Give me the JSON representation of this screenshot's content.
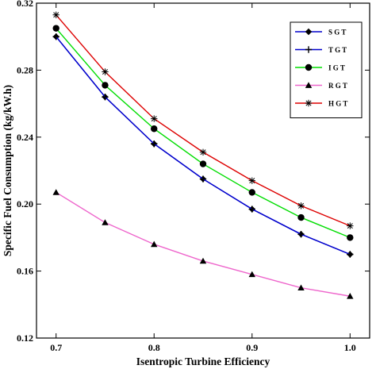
{
  "chart_data": {
    "type": "line",
    "xlabel": "Isentropic Turbine Efficiency",
    "ylabel": "Specific Fuel Consumption (kg/kW.h)",
    "x": [
      0.7,
      0.75,
      0.8,
      0.85,
      0.9,
      0.95,
      1.0
    ],
    "xlim": [
      0.68,
      1.02
    ],
    "ylim": [
      0.12,
      0.32
    ],
    "x_ticks": [
      "0.7",
      "0.8",
      "0.9",
      "1.0"
    ],
    "y_ticks": [
      "0.12",
      "0.16",
      "0.20",
      "0.24",
      "0.28",
      "0.32"
    ],
    "grid": false,
    "legend_position": "top-right",
    "series": [
      {
        "name": "SGT",
        "color": "#0000cc",
        "marker": "diamond",
        "values": [
          0.3,
          0.264,
          0.236,
          0.215,
          0.197,
          0.182,
          0.17
        ]
      },
      {
        "name": "TGT",
        "color": "#0000cc",
        "marker": "plus",
        "values": [
          0.3,
          0.264,
          0.236,
          0.215,
          0.197,
          0.182,
          0.17
        ]
      },
      {
        "name": "IGT",
        "color": "#00dd00",
        "marker": "circle",
        "values": [
          0.305,
          0.271,
          0.245,
          0.224,
          0.207,
          0.192,
          0.18
        ]
      },
      {
        "name": "RGT",
        "color": "#ee66cc",
        "marker": "triangle",
        "values": [
          0.207,
          0.189,
          0.176,
          0.166,
          0.158,
          0.15,
          0.145
        ]
      },
      {
        "name": "HGT",
        "color": "#dd0000",
        "marker": "star",
        "values": [
          0.313,
          0.279,
          0.251,
          0.231,
          0.214,
          0.199,
          0.187
        ]
      }
    ]
  }
}
